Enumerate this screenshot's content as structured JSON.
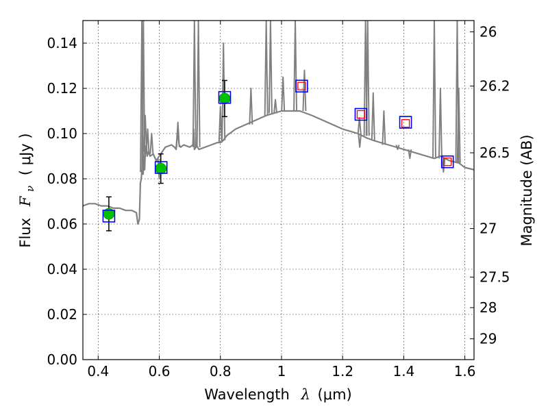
{
  "chart_data": {
    "type": "line",
    "xlabel_prefix": "Wavelength",
    "xlabel_symbol": "λ",
    "xlabel_unit": "(μm)",
    "ylabel_prefix": "Flux",
    "ylabel_symbol": "F",
    "ylabel_subscript": "ν",
    "ylabel_unit": "( μJy )",
    "y2label": "Magnitude (AB)",
    "xlim": [
      0.35,
      1.63
    ],
    "ylim": [
      0.0,
      0.15
    ],
    "grid": true,
    "x_ticks": [
      0.4,
      0.6,
      0.8,
      1.0,
      1.2,
      1.4,
      1.6
    ],
    "x_tick_labels": [
      "0.4",
      "0.6",
      "0.8",
      "1",
      "1.2",
      "1.4",
      "1.6"
    ],
    "y_ticks": [
      0.0,
      0.02,
      0.04,
      0.06,
      0.08,
      0.1,
      0.12,
      0.14
    ],
    "y_tick_labels": [
      "0.00",
      "0.02",
      "0.04",
      "0.06",
      "0.08",
      "0.10",
      "0.12",
      "0.14"
    ],
    "y2_ticks": [
      {
        "label": "26",
        "flux": 0.145
      },
      {
        "label": "26.2",
        "flux": 0.121
      },
      {
        "label": "26.5",
        "flux": 0.0915
      },
      {
        "label": "27",
        "flux": 0.058
      },
      {
        "label": "27.5",
        "flux": 0.0365
      },
      {
        "label": "28",
        "flux": 0.023
      },
      {
        "label": "29",
        "flux": 0.0092
      }
    ],
    "series": [
      {
        "name": "SED model spectrum",
        "kind": "line",
        "color": "#808080",
        "x": [
          0.35,
          0.37,
          0.39,
          0.41,
          0.43,
          0.45,
          0.47,
          0.49,
          0.51,
          0.525,
          0.53,
          0.535,
          0.538,
          0.541,
          0.544,
          0.547,
          0.55,
          0.552,
          0.555,
          0.558,
          0.56,
          0.565,
          0.57,
          0.58,
          0.59,
          0.6,
          0.62,
          0.64,
          0.65,
          0.655,
          0.66,
          0.665,
          0.67,
          0.68,
          0.7,
          0.71,
          0.712,
          0.715,
          0.72,
          0.722,
          0.725,
          0.73,
          0.75,
          0.77,
          0.79,
          0.8,
          0.81,
          0.82,
          0.85,
          0.9,
          0.95,
          1.0,
          1.03,
          1.06,
          1.1,
          1.15,
          1.2,
          1.25,
          1.28,
          1.3,
          1.35,
          1.4,
          1.45,
          1.5,
          1.52,
          1.55,
          1.58,
          1.6,
          1.63
        ],
        "y": [
          0.068,
          0.069,
          0.069,
          0.068,
          0.068,
          0.067,
          0.067,
          0.066,
          0.066,
          0.065,
          0.06,
          0.062,
          0.078,
          0.08,
          0.085,
          0.082,
          0.09,
          0.084,
          0.094,
          0.095,
          0.09,
          0.092,
          0.09,
          0.091,
          0.088,
          0.09,
          0.094,
          0.095,
          0.094,
          0.093,
          0.102,
          0.095,
          0.094,
          0.095,
          0.094,
          0.095,
          0.102,
          0.093,
          0.094,
          0.095,
          0.094,
          0.093,
          0.094,
          0.095,
          0.096,
          0.096,
          0.097,
          0.099,
          0.102,
          0.105,
          0.108,
          0.11,
          0.11,
          0.11,
          0.108,
          0.105,
          0.102,
          0.1,
          0.098,
          0.097,
          0.095,
          0.093,
          0.091,
          0.089,
          0.09,
          0.088,
          0.087,
          0.085,
          0.084
        ]
      },
      {
        "name": "Emission lines",
        "kind": "spikes",
        "color": "#808080",
        "lines": [
          {
            "x": 0.543,
            "top": 0.15,
            "base": 0.083
          },
          {
            "x": 0.548,
            "top": 0.15,
            "base": 0.085
          },
          {
            "x": 0.554,
            "top": 0.108,
            "base": 0.092
          },
          {
            "x": 0.562,
            "top": 0.102,
            "base": 0.091
          },
          {
            "x": 0.575,
            "top": 0.1,
            "base": 0.091
          },
          {
            "x": 0.661,
            "top": 0.105,
            "base": 0.094
          },
          {
            "x": 0.715,
            "top": 0.15,
            "base": 0.094
          },
          {
            "x": 0.728,
            "top": 0.15,
            "base": 0.094
          },
          {
            "x": 0.8,
            "top": 0.112,
            "base": 0.096
          },
          {
            "x": 0.81,
            "top": 0.14,
            "base": 0.097
          },
          {
            "x": 0.9,
            "top": 0.12,
            "base": 0.104
          },
          {
            "x": 0.95,
            "top": 0.15,
            "base": 0.108
          },
          {
            "x": 0.964,
            "top": 0.15,
            "base": 0.109
          },
          {
            "x": 0.98,
            "top": 0.115,
            "base": 0.109
          },
          {
            "x": 1.005,
            "top": 0.125,
            "base": 0.11
          },
          {
            "x": 1.045,
            "top": 0.15,
            "base": 0.11
          },
          {
            "x": 1.075,
            "top": 0.128,
            "base": 0.11
          },
          {
            "x": 1.255,
            "top": 0.107,
            "base": 0.1
          },
          {
            "x": 1.275,
            "top": 0.15,
            "base": 0.099
          },
          {
            "x": 1.282,
            "top": 0.15,
            "base": 0.099
          },
          {
            "x": 1.3,
            "top": 0.118,
            "base": 0.097
          },
          {
            "x": 1.335,
            "top": 0.11,
            "base": 0.095
          },
          {
            "x": 1.5,
            "top": 0.15,
            "base": 0.089
          },
          {
            "x": 1.52,
            "top": 0.12,
            "base": 0.089
          },
          {
            "x": 1.575,
            "top": 0.15,
            "base": 0.087
          },
          {
            "x": 1.58,
            "top": 0.12,
            "base": 0.087
          }
        ]
      },
      {
        "name": "Absorption dips",
        "kind": "dips",
        "color": "#808080",
        "lines": [
          {
            "x": 0.6,
            "bottom": 0.08,
            "base": 0.089
          },
          {
            "x": 1.256,
            "bottom": 0.094,
            "base": 0.1
          },
          {
            "x": 1.38,
            "bottom": 0.093,
            "base": 0.095
          },
          {
            "x": 1.42,
            "bottom": 0.089,
            "base": 0.093
          },
          {
            "x": 1.53,
            "bottom": 0.083,
            "base": 0.089
          }
        ]
      },
      {
        "name": "Observed photometry",
        "kind": "points",
        "color": "#00c000",
        "points": [
          {
            "x": 0.435,
            "y": 0.0645,
            "err": 0.0075
          },
          {
            "x": 0.605,
            "y": 0.0845,
            "err": 0.0065
          },
          {
            "x": 0.814,
            "y": 0.1155,
            "err": 0.008
          }
        ]
      },
      {
        "name": "Model fluxes",
        "kind": "squares",
        "color": "#0000ff",
        "points": [
          {
            "x": 0.435,
            "y": 0.0635
          },
          {
            "x": 0.606,
            "y": 0.085
          },
          {
            "x": 0.814,
            "y": 0.116
          },
          {
            "x": 1.066,
            "y": 0.121
          },
          {
            "x": 1.26,
            "y": 0.1085
          },
          {
            "x": 1.406,
            "y": 0.105
          },
          {
            "x": 1.543,
            "y": 0.0875
          }
        ]
      },
      {
        "name": "Upper limits",
        "kind": "small-squares",
        "color": "#ff0000",
        "points": [
          {
            "x": 1.066,
            "y": 0.121
          },
          {
            "x": 1.26,
            "y": 0.1085
          },
          {
            "x": 1.406,
            "y": 0.1045
          },
          {
            "x": 1.543,
            "y": 0.0875
          }
        ]
      }
    ]
  }
}
